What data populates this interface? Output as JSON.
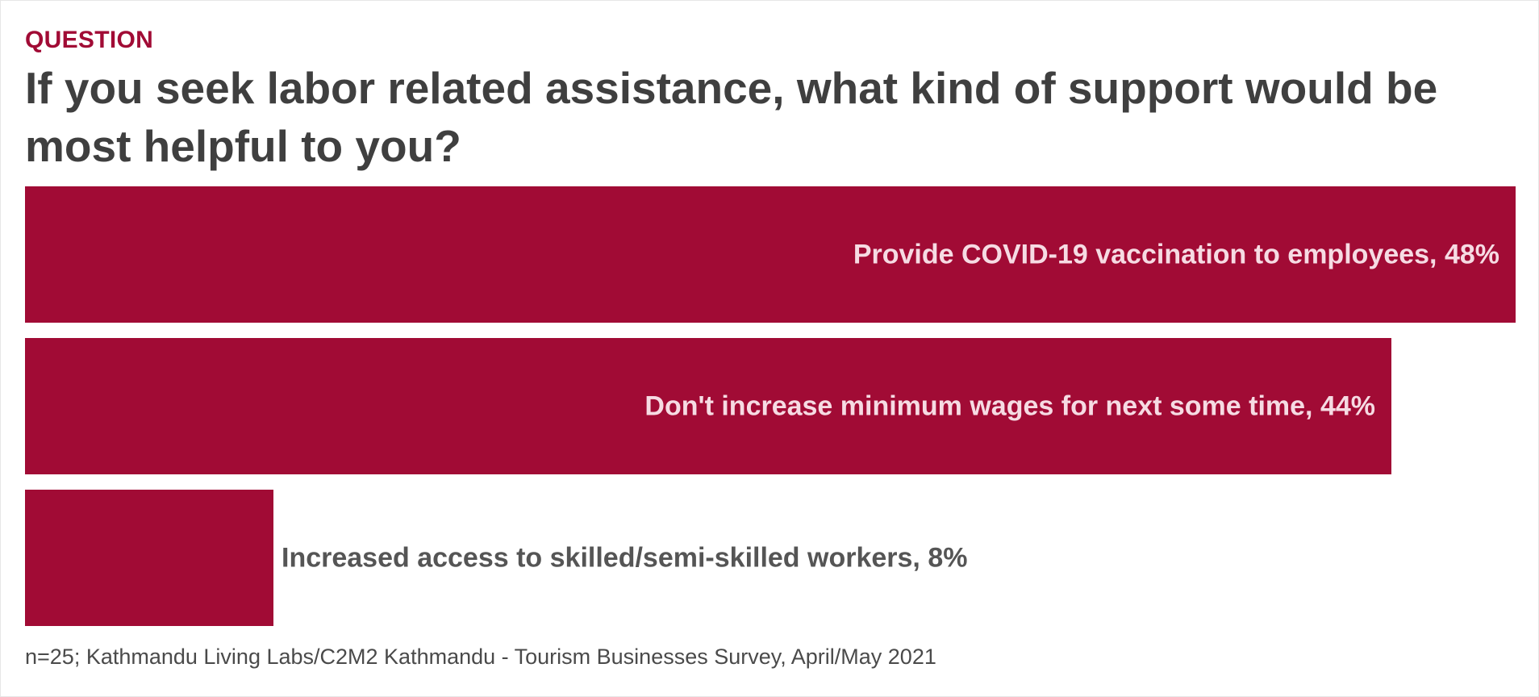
{
  "header": {
    "kicker": "QUESTION",
    "title": "If you seek labor related assistance, what kind of support would be most helpful to you?"
  },
  "colors": {
    "accent": "#a10b35",
    "bar": "#a10b35",
    "label_inside": "#f6dbe3",
    "label_outside": "#555555",
    "title": "#3f3f3f"
  },
  "chart_data": {
    "type": "bar",
    "orientation": "horizontal",
    "categories": [
      "Provide COVID-19 vaccination to employees",
      "Don't increase minimum wages for next some time",
      "Increased access to skilled/semi-skilled workers"
    ],
    "values": [
      48,
      44,
      8
    ],
    "data_labels": [
      "Provide COVID-19 vaccination to employees, 48%",
      "Don't increase minimum wages for next some time, 44%",
      "Increased access to skilled/semi-skilled workers, 8%"
    ],
    "unit": "%",
    "xlim": [
      0,
      48
    ],
    "grid": false,
    "legend": "none"
  },
  "footer": {
    "source": "n=25; Kathmandu Living Labs/C2M2 Kathmandu - Tourism Businesses Survey, April/May 2021"
  }
}
